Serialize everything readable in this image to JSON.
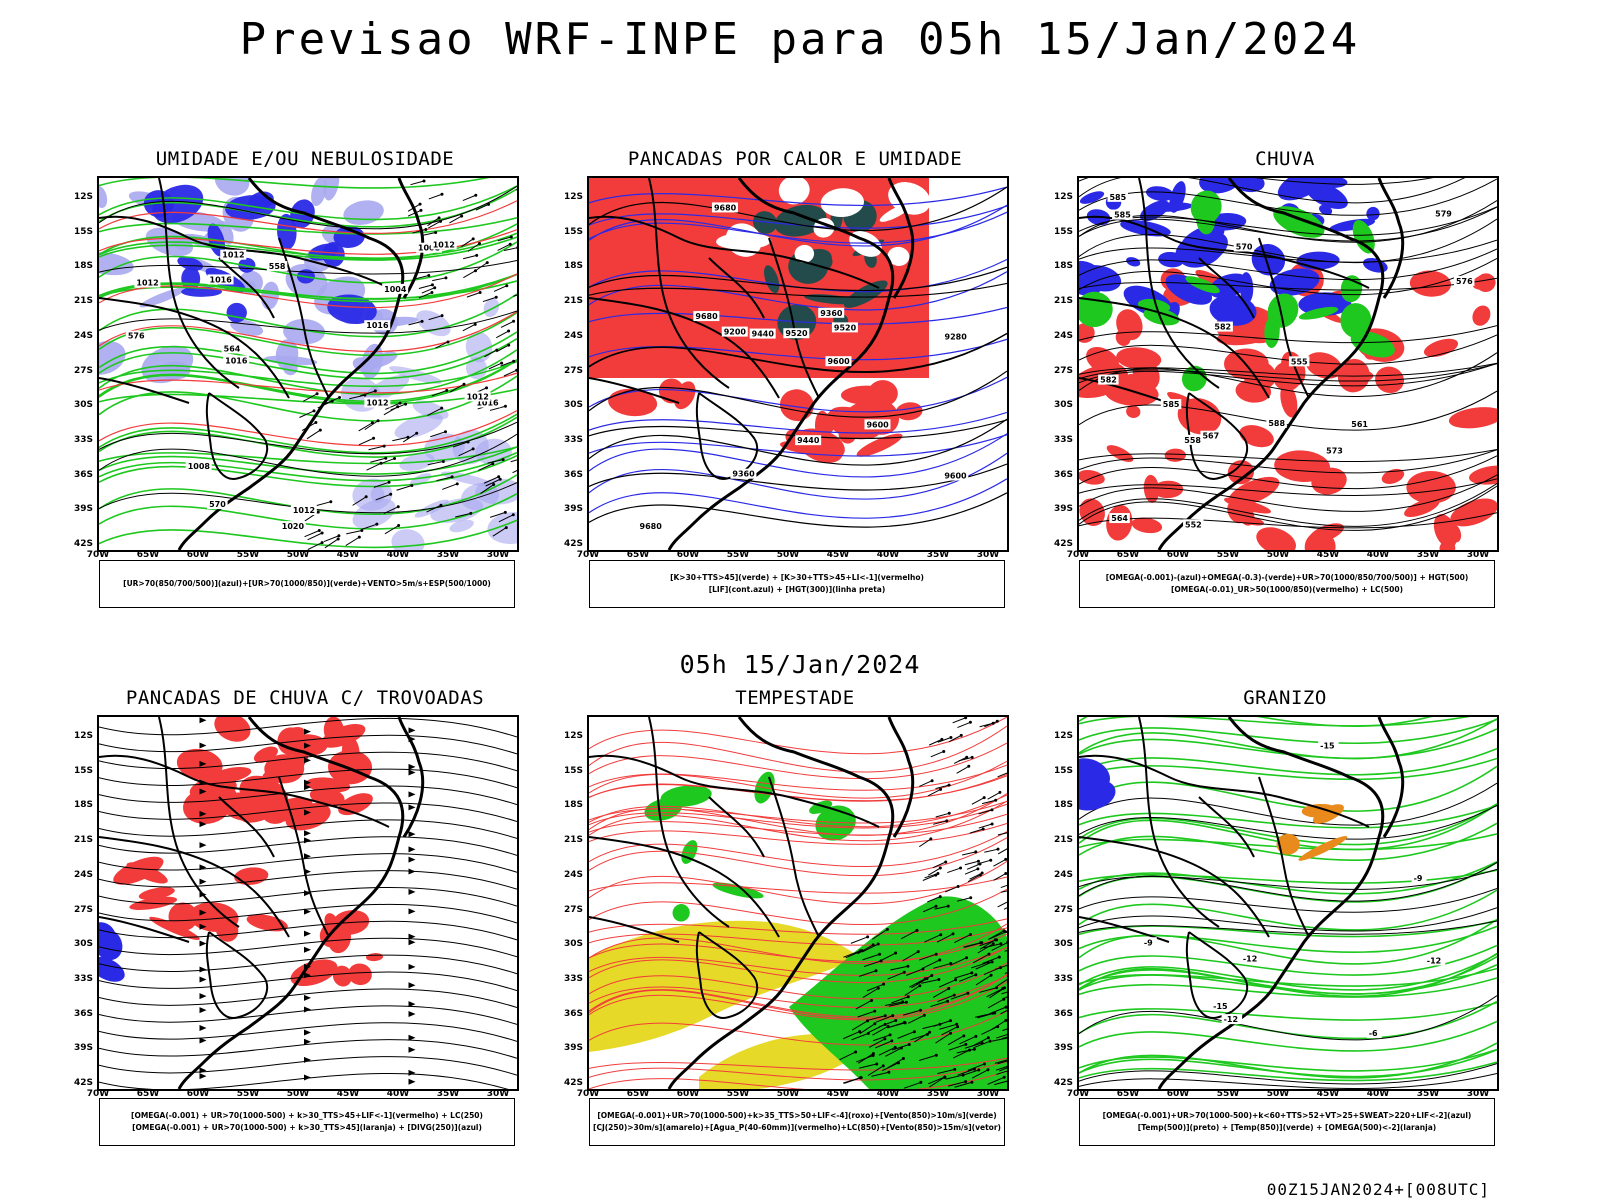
{
  "title": "Previsao WRF-INPE  para 05h 15/Jan/2024",
  "mid_title": "05h 15/Jan/2024",
  "footer": "00Z15JAN2024+[008UTC]",
  "lat_labels": [
    "12S",
    "15S",
    "18S",
    "21S",
    "24S",
    "27S",
    "30S",
    "33S",
    "36S",
    "39S",
    "42S"
  ],
  "lon_labels": [
    "70W",
    "65W",
    "60W",
    "55W",
    "50W",
    "45W",
    "40W",
    "35W",
    "30W"
  ],
  "panels": [
    {
      "title": "UMIDADE E/OU NEBULOSIDADE",
      "legend": [
        "[UR>70(850/700/500)](azul)+[UR>70(1000/850)](verde)+VENTO>5m/s+ESP(500/1000)"
      ],
      "labels": [
        "1012",
        "1016",
        "1016",
        "1012",
        "1008",
        "1020",
        "1012",
        "1016",
        "1012",
        "1016",
        "1012",
        "1012",
        "1004",
        "1008",
        "576",
        "570",
        "564",
        "558"
      ]
    },
    {
      "title": "PANCADAS POR CALOR E UMIDADE",
      "legend": [
        "[K>30+TTS>45](verde) + [K>30+TTS>45+LI<-1](vermelho)",
        "[LIF](cont.azul) + [HGT(300)](linha preta)"
      ],
      "labels": [
        "9680",
        "9600",
        "9680",
        "9680",
        "9600",
        "9520",
        "9600",
        "9520",
        "9440",
        "9440",
        "9360",
        "9280",
        "9200",
        "9360"
      ]
    },
    {
      "title": "CHUVA",
      "legend": [
        "[OMEGA(-0.001)-(azul)+OMEGA(-0.3)-(verde)+UR>70(1000/850/700/500)] + HGT(500)",
        "[OMEGA(-0.01)_UR>50(1000/850)(vermelho) + LC(500)"
      ],
      "labels": [
        "585",
        "585",
        "582",
        "579",
        "576",
        "573",
        "570",
        "567",
        "564",
        "561",
        "558",
        "555",
        "552",
        "585",
        "588",
        "582"
      ]
    },
    {
      "title": "PANCADAS DE CHUVA C/ TROVOADAS",
      "legend": [
        "[OMEGA(-0.001) + UR>70(1000-500) + k>30_TTS>45+LIF<-1](vermelho) + LC(250)",
        "[OMEGA(-0.001) + UR>70(1000-500) + k>30_TTS>45](laranja) + [DIVG(250)](azul)"
      ],
      "labels": []
    },
    {
      "title": "TEMPESTADE",
      "legend": [
        "[OMEGA(-0.001)+UR>70(1000-500)+k>35_TTS>50+LIF<-4](roxo)+[Vento(850)>10m/s](verde)",
        "[CJ(250)>30m/s](amarelo)+[Agua_P(40-60mm)](vermelho)+LC(850)+[Vento(850)>15m/s](vetor)"
      ],
      "labels": []
    },
    {
      "title": "GRANIZO",
      "legend": [
        "[OMEGA(-0.001)+UR>70(1000-500)+k<60+TTS>52+VT>25+SWEAT>220+LIF<-2](azul)",
        "[Temp(500)](preto) + [Temp(850)](verde) + [OMEGA(500)<-2](laranja)"
      ],
      "labels": [
        "-6",
        "-9",
        "-12",
        "-12",
        "-15",
        "-15",
        "-12",
        "-9"
      ]
    }
  ],
  "colors": {
    "red": "#f23c3c",
    "blue": "#2a2ae6",
    "lightblue": "#a8a8f0",
    "green": "#1ec81e",
    "yellow": "#e6d928",
    "darkteal": "#244b4b"
  }
}
